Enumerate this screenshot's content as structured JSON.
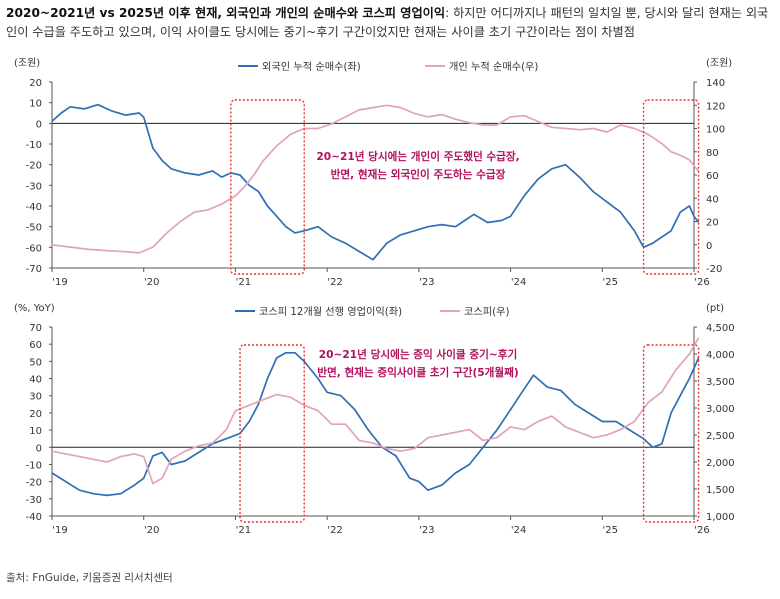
{
  "caption": {
    "title": "2020~2021년 vs 2025년 이후 현재, 외국인과 개인의 순매수와 코스피 영업이익",
    "body": ": 하지만 어디까지나 패턴의 일치일 뿐, 당시와 달리 현재는 외국인이 수급을 주도하고 있으며, 이익 사이클도 당시에는 중기~후기 구간이었지만 현재는 사이클 초기 구간이라는 점이 차별점"
  },
  "source": "출처: FnGuide, 키움증권 리서치센터",
  "colors": {
    "blue": "#2f6fb5",
    "pink": "#e0a3b8",
    "box": "#e8322f",
    "note": "#b0115f"
  },
  "chart_data": [
    {
      "type": "line",
      "left_unit": "(조원)",
      "right_unit": "(조원)",
      "left_ylim": [
        -70,
        20
      ],
      "right_ylim": [
        -20,
        140
      ],
      "left_ticks": [
        "20",
        "10",
        "0",
        "-10",
        "-20",
        "-30",
        "-40",
        "-50",
        "-60",
        "-70"
      ],
      "right_ticks": [
        "140",
        "120",
        "100",
        "80",
        "60",
        "40",
        "20",
        "0",
        "-20"
      ],
      "x_labels": [
        "'19",
        "'20",
        "'21",
        "'22",
        "'23",
        "'24",
        "'25",
        "'26"
      ],
      "x_range": [
        2019.0,
        2026.0
      ],
      "annotation": [
        "20~21년 당시에는 개인이 주도했던 수급장,",
        "반면, 현재는 외국인이 주도하는 수급장"
      ],
      "highlight": [
        [
          2020.95,
          2021.75
        ],
        [
          2025.45,
          2026.05
        ]
      ],
      "series": [
        {
          "name": "외국인 누적 순매수(좌)",
          "axis": "left",
          "x": [
            2019.0,
            2019.1,
            2019.2,
            2019.35,
            2019.5,
            2019.65,
            2019.8,
            2019.95,
            2020.0,
            2020.1,
            2020.2,
            2020.3,
            2020.45,
            2020.6,
            2020.75,
            2020.85,
            2020.95,
            2021.05,
            2021.15,
            2021.25,
            2021.35,
            2021.45,
            2021.55,
            2021.65,
            2021.75,
            2021.9,
            2022.05,
            2022.2,
            2022.35,
            2022.5,
            2022.65,
            2022.8,
            2022.95,
            2023.1,
            2023.25,
            2023.4,
            2023.5,
            2023.6,
            2023.75,
            2023.9,
            2024.0,
            2024.15,
            2024.3,
            2024.45,
            2024.6,
            2024.75,
            2024.9,
            2025.05,
            2025.2,
            2025.35,
            2025.45,
            2025.55,
            2025.65,
            2025.75,
            2025.85,
            2025.95,
            2026.0,
            2026.05
          ],
          "y": [
            1,
            5,
            8,
            7,
            9,
            6,
            4,
            5,
            3,
            -12,
            -18,
            -22,
            -24,
            -25,
            -23,
            -26,
            -24,
            -25,
            -30,
            -33,
            -40,
            -45,
            -50,
            -53,
            -52,
            -50,
            -55,
            -58,
            -62,
            -66,
            -58,
            -54,
            -52,
            -50,
            -49,
            -50,
            -47,
            -44,
            -48,
            -47,
            -45,
            -35,
            -27,
            -22,
            -20,
            -26,
            -33,
            -38,
            -43,
            -52,
            -60,
            -58,
            -55,
            -52,
            -43,
            -40,
            -45,
            -48
          ]
        },
        {
          "name": "개인 누적 순매수(우)",
          "axis": "right",
          "x": [
            2019.0,
            2019.2,
            2019.4,
            2019.6,
            2019.8,
            2019.95,
            2020.1,
            2020.25,
            2020.4,
            2020.55,
            2020.7,
            2020.85,
            2021.0,
            2021.1,
            2021.2,
            2021.3,
            2021.45,
            2021.6,
            2021.75,
            2021.9,
            2022.05,
            2022.2,
            2022.35,
            2022.5,
            2022.65,
            2022.8,
            2022.95,
            2023.1,
            2023.25,
            2023.4,
            2023.55,
            2023.7,
            2023.85,
            2024.0,
            2024.15,
            2024.3,
            2024.45,
            2024.6,
            2024.75,
            2024.9,
            2025.05,
            2025.2,
            2025.35,
            2025.5,
            2025.65,
            2025.75,
            2025.85,
            2025.95,
            2026.05
          ],
          "y": [
            0,
            -2,
            -4,
            -5,
            -6,
            -7,
            -2,
            10,
            20,
            28,
            30,
            35,
            42,
            50,
            60,
            72,
            85,
            95,
            100,
            100,
            104,
            110,
            116,
            118,
            120,
            118,
            113,
            110,
            112,
            108,
            105,
            103,
            103,
            110,
            111,
            106,
            101,
            100,
            99,
            100,
            97,
            103,
            100,
            95,
            87,
            80,
            77,
            73,
            63
          ]
        }
      ]
    },
    {
      "type": "line",
      "left_unit": "(%, YoY)",
      "right_unit": "(pt)",
      "left_ylim": [
        -40,
        70
      ],
      "right_ylim": [
        1000,
        4500
      ],
      "left_ticks": [
        "70",
        "60",
        "50",
        "40",
        "30",
        "20",
        "10",
        "0",
        "-10",
        "-20",
        "-30",
        "-40"
      ],
      "right_ticks": [
        "4,500",
        "4,000",
        "3,500",
        "3,000",
        "2,500",
        "2,000",
        "1,500",
        "1,000"
      ],
      "x_labels": [
        "'19",
        "'20",
        "'21",
        "'22",
        "'23",
        "'24",
        "'25",
        "'26"
      ],
      "x_range": [
        2019.0,
        2026.0
      ],
      "annotation": [
        "20~21년 당시에는 증익 사이클 중기~후기",
        "반면, 현재는 증익사이클 초기 구간(5개월째)"
      ],
      "highlight": [
        [
          2021.05,
          2021.75
        ],
        [
          2025.45,
          2026.05
        ]
      ],
      "series": [
        {
          "name": "코스피 12개월 선행 영업이익(좌)",
          "axis": "left",
          "x": [
            2019.0,
            2019.15,
            2019.3,
            2019.45,
            2019.6,
            2019.75,
            2019.9,
            2020.0,
            2020.1,
            2020.2,
            2020.3,
            2020.45,
            2020.6,
            2020.75,
            2020.9,
            2021.05,
            2021.15,
            2021.25,
            2021.35,
            2021.45,
            2021.55,
            2021.65,
            2021.75,
            2021.9,
            2022.0,
            2022.15,
            2022.3,
            2022.45,
            2022.6,
            2022.75,
            2022.9,
            2023.0,
            2023.1,
            2023.25,
            2023.4,
            2023.55,
            2023.7,
            2023.85,
            2024.0,
            2024.1,
            2024.25,
            2024.4,
            2024.55,
            2024.7,
            2024.85,
            2025.0,
            2025.15,
            2025.3,
            2025.45,
            2025.55,
            2025.65,
            2025.75,
            2025.85,
            2025.95,
            2026.05
          ],
          "y": [
            -15,
            -20,
            -25,
            -27,
            -28,
            -27,
            -22,
            -18,
            -5,
            -3,
            -10,
            -8,
            -3,
            2,
            5,
            8,
            15,
            25,
            40,
            52,
            55,
            55,
            50,
            40,
            32,
            30,
            22,
            10,
            0,
            -5,
            -18,
            -20,
            -25,
            -22,
            -15,
            -10,
            0,
            10,
            22,
            30,
            42,
            35,
            33,
            25,
            20,
            15,
            15,
            10,
            5,
            0,
            2,
            20,
            30,
            40,
            52
          ]
        },
        {
          "name": "코스피(우)",
          "axis": "right",
          "x": [
            2019.0,
            2019.15,
            2019.3,
            2019.45,
            2019.6,
            2019.75,
            2019.9,
            2020.0,
            2020.1,
            2020.2,
            2020.3,
            2020.45,
            2020.6,
            2020.75,
            2020.9,
            2021.0,
            2021.15,
            2021.3,
            2021.45,
            2021.6,
            2021.75,
            2021.9,
            2022.05,
            2022.2,
            2022.35,
            2022.5,
            2022.65,
            2022.8,
            2022.95,
            2023.1,
            2023.25,
            2023.4,
            2023.55,
            2023.7,
            2023.85,
            2024.0,
            2024.15,
            2024.3,
            2024.45,
            2024.6,
            2024.75,
            2024.9,
            2025.05,
            2025.2,
            2025.35,
            2025.5,
            2025.65,
            2025.8,
            2025.95,
            2026.05
          ],
          "y": [
            2200,
            2150,
            2100,
            2050,
            2000,
            2100,
            2150,
            2100,
            1600,
            1700,
            2050,
            2200,
            2300,
            2350,
            2600,
            2950,
            3050,
            3150,
            3250,
            3200,
            3050,
            2950,
            2700,
            2700,
            2400,
            2350,
            2250,
            2200,
            2250,
            2450,
            2500,
            2550,
            2600,
            2400,
            2450,
            2650,
            2600,
            2750,
            2850,
            2650,
            2550,
            2450,
            2500,
            2600,
            2750,
            3100,
            3300,
            3700,
            4000,
            4300
          ]
        }
      ]
    }
  ]
}
